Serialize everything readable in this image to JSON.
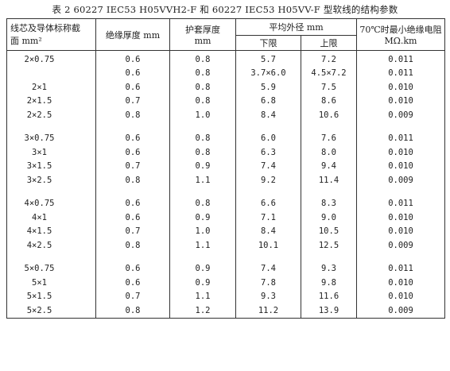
{
  "caption": "表 2   60227 IEC53 H05VVH2-F 和 60227 IEC53 H05VV-F 型软线的结构参数",
  "headers": {
    "conductor_line1": "线芯及导体标称截",
    "conductor_line2": "面 mm²",
    "insulation": "绝缘厚度 mm",
    "sheath_line1": "护套厚度",
    "sheath_line2": "mm",
    "avg_diameter": "平均外径 mm",
    "lower": "下限",
    "upper": "上限",
    "resistance_line1": "70℃时最小绝缘电阻",
    "resistance_line2": "MΩ.km"
  },
  "groups": [
    {
      "rows": [
        {
          "size": "2×0.75",
          "insulation": "0.6",
          "sheath": "0.8",
          "lower": "5.7",
          "upper": "7.2",
          "resistance": "0.011"
        },
        {
          "size": "",
          "insulation": "0.6",
          "sheath": "0.8",
          "lower": "3.7×6.0",
          "upper": "4.5×7.2",
          "resistance": "0.011"
        },
        {
          "size": "2×1",
          "insulation": "0.6",
          "sheath": "0.8",
          "lower": "5.9",
          "upper": "7.5",
          "resistance": "0.010"
        },
        {
          "size": "2×1.5",
          "insulation": "0.7",
          "sheath": "0.8",
          "lower": "6.8",
          "upper": "8.6",
          "resistance": "0.010"
        },
        {
          "size": "2×2.5",
          "insulation": "0.8",
          "sheath": "1.0",
          "lower": "8.4",
          "upper": "10.6",
          "resistance": "0.009"
        }
      ]
    },
    {
      "rows": [
        {
          "size": "3×0.75",
          "insulation": "0.6",
          "sheath": "0.8",
          "lower": "6.0",
          "upper": "7.6",
          "resistance": "0.011"
        },
        {
          "size": "3×1",
          "insulation": "0.6",
          "sheath": "0.8",
          "lower": "6.3",
          "upper": "8.0",
          "resistance": "0.010"
        },
        {
          "size": "3×1.5",
          "insulation": "0.7",
          "sheath": "0.9",
          "lower": "7.4",
          "upper": "9.4",
          "resistance": "0.010"
        },
        {
          "size": "3×2.5",
          "insulation": "0.8",
          "sheath": "1.1",
          "lower": "9.2",
          "upper": "11.4",
          "resistance": "0.009"
        }
      ]
    },
    {
      "rows": [
        {
          "size": "4×0.75",
          "insulation": "0.6",
          "sheath": "0.8",
          "lower": "6.6",
          "upper": "8.3",
          "resistance": "0.011"
        },
        {
          "size": "4×1",
          "insulation": "0.6",
          "sheath": "0.9",
          "lower": "7.1",
          "upper": "9.0",
          "resistance": "0.010"
        },
        {
          "size": "4×1.5",
          "insulation": "0.7",
          "sheath": "1.0",
          "lower": "8.4",
          "upper": "10.5",
          "resistance": "0.010"
        },
        {
          "size": "4×2.5",
          "insulation": "0.8",
          "sheath": "1.1",
          "lower": "10.1",
          "upper": "12.5",
          "resistance": "0.009"
        }
      ]
    },
    {
      "rows": [
        {
          "size": "5×0.75",
          "insulation": "0.6",
          "sheath": "0.9",
          "lower": "7.4",
          "upper": "9.3",
          "resistance": "0.011"
        },
        {
          "size": "5×1",
          "insulation": "0.6",
          "sheath": "0.9",
          "lower": "7.8",
          "upper": "9.8",
          "resistance": "0.010"
        },
        {
          "size": "5×1.5",
          "insulation": "0.7",
          "sheath": "1.1",
          "lower": "9.3",
          "upper": "11.6",
          "resistance": "0.010"
        },
        {
          "size": "5×2.5",
          "insulation": "0.8",
          "sheath": "1.2",
          "lower": "11.2",
          "upper": "13.9",
          "resistance": "0.009"
        }
      ]
    }
  ]
}
